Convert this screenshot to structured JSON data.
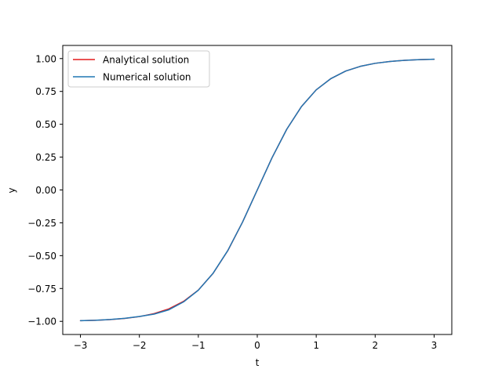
{
  "chart_data": {
    "type": "line",
    "title": "",
    "xlabel": "t",
    "ylabel": "y",
    "xlim": [
      -3.3,
      3.3
    ],
    "ylim": [
      -1.1,
      1.1
    ],
    "xticks": [
      -3,
      -2,
      -1,
      0,
      1,
      2,
      3
    ],
    "xtick_labels": [
      "−3",
      "−2",
      "−1",
      "0",
      "1",
      "2",
      "3"
    ],
    "yticks": [
      -1.0,
      -0.75,
      -0.5,
      -0.25,
      0.0,
      0.25,
      0.5,
      0.75,
      1.0
    ],
    "ytick_labels": [
      "−1.00",
      "−0.75",
      "−0.50",
      "−0.25",
      "0.00",
      "0.25",
      "0.50",
      "0.75",
      "1.00"
    ],
    "grid": false,
    "legend_position": "top-left",
    "series": [
      {
        "name": "Analytical solution",
        "color": "#e41a1c",
        "x": [
          -3.0,
          -2.75,
          -2.5,
          -2.25,
          -2.0,
          -1.75,
          -1.5,
          -1.25,
          -1.0,
          -0.75,
          -0.5,
          -0.25,
          0.0,
          0.25,
          0.5,
          0.75,
          1.0,
          1.25,
          1.5,
          1.75,
          2.0,
          2.25,
          2.5,
          2.75,
          3.0
        ],
        "y": [
          -0.995,
          -0.992,
          -0.987,
          -0.978,
          -0.964,
          -0.941,
          -0.905,
          -0.848,
          -0.762,
          -0.635,
          -0.462,
          -0.245,
          0.0,
          0.245,
          0.462,
          0.635,
          0.762,
          0.848,
          0.905,
          0.941,
          0.964,
          0.978,
          0.987,
          0.992,
          0.995
        ]
      },
      {
        "name": "Numerical solution",
        "color": "#1f77b4",
        "x": [
          -3.0,
          -2.75,
          -2.5,
          -2.25,
          -2.0,
          -1.75,
          -1.5,
          -1.25,
          -1.0,
          -0.75,
          -0.5,
          -0.25,
          0.0,
          0.25,
          0.5,
          0.75,
          1.0,
          1.25,
          1.5,
          1.75,
          2.0,
          2.25,
          2.5,
          2.75,
          3.0
        ],
        "y": [
          -0.995,
          -0.992,
          -0.986,
          -0.977,
          -0.963,
          -0.945,
          -0.912,
          -0.852,
          -0.763,
          -0.634,
          -0.461,
          -0.245,
          0.0,
          0.245,
          0.462,
          0.635,
          0.762,
          0.848,
          0.905,
          0.941,
          0.964,
          0.978,
          0.987,
          0.992,
          0.995
        ]
      }
    ]
  }
}
